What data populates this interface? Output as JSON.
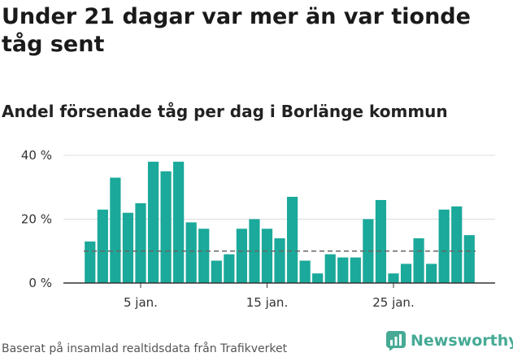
{
  "header": {
    "title": "Under 21 dagar var mer än var tionde tåg sent",
    "subtitle": "Andel försenade tåg per dag i Borlänge kommun"
  },
  "footer": {
    "source": "Baserat på insamlad realtidsdata från Trafikverket",
    "brand": "Newsworthy"
  },
  "colors": {
    "bar": "#1aa99a",
    "reference_line": "#666666",
    "brand": "#46aa95"
  },
  "chart_data": {
    "type": "bar",
    "x": [
      "2024-01-01",
      "2024-01-02",
      "2024-01-03",
      "2024-01-04",
      "2024-01-05",
      "2024-01-06",
      "2024-01-07",
      "2024-01-08",
      "2024-01-09",
      "2024-01-10",
      "2024-01-11",
      "2024-01-12",
      "2024-01-13",
      "2024-01-14",
      "2024-01-15",
      "2024-01-16",
      "2024-01-17",
      "2024-01-18",
      "2024-01-19",
      "2024-01-20",
      "2024-01-21",
      "2024-01-22",
      "2024-01-23",
      "2024-01-24",
      "2024-01-25",
      "2024-01-26",
      "2024-01-27",
      "2024-01-28",
      "2024-01-29",
      "2024-01-30",
      "2024-01-31"
    ],
    "values": [
      13,
      23,
      33,
      22,
      25,
      38,
      35,
      38,
      19,
      17,
      7,
      9,
      17,
      20,
      17,
      14,
      27,
      7,
      3,
      9,
      8,
      8,
      20,
      26,
      3,
      6,
      14,
      6,
      23,
      24,
      15
    ],
    "reference_value": 10,
    "ylim": [
      0,
      40
    ],
    "yticks": [
      0,
      20,
      40
    ],
    "ytick_labels": [
      "0 %",
      "20 %",
      "40 %"
    ],
    "xticks": [
      {
        "date": "2024-01-05",
        "label": "5 jan."
      },
      {
        "date": "2024-01-15",
        "label": "15 jan."
      },
      {
        "date": "2024-01-25",
        "label": "25 jan."
      }
    ],
    "grid": true,
    "legend": "none"
  }
}
